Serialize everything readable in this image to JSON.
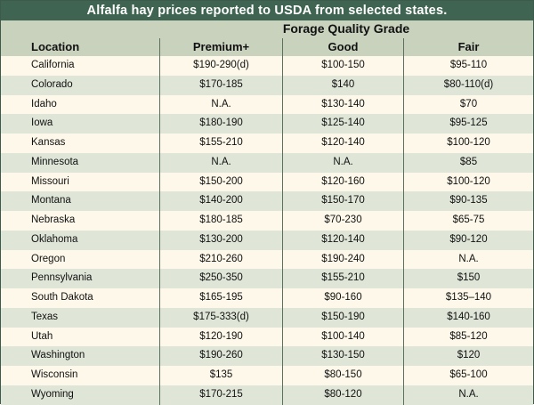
{
  "title": "Alfalfa hay prices reported to USDA from selected states.",
  "group_header": "Forage Quality Grade",
  "columns": {
    "location": "Location",
    "premium": "Premium+",
    "good": "Good",
    "fair": "Fair"
  },
  "rows": [
    {
      "location": "California",
      "premium": "$190-290(d)",
      "good": "$100-150",
      "fair": "$95-110"
    },
    {
      "location": "Colorado",
      "premium": "$170-185",
      "good": "$140",
      "fair": "$80-110(d)"
    },
    {
      "location": "Idaho",
      "premium": "N.A.",
      "good": "$130-140",
      "fair": "$70"
    },
    {
      "location": "Iowa",
      "premium": "$180-190",
      "good": "$125-140",
      "fair": "$95-125"
    },
    {
      "location": "Kansas",
      "premium": "$155-210",
      "good": "$120-140",
      "fair": "$100-120"
    },
    {
      "location": "Minnesota",
      "premium": "N.A.",
      "good": "N.A.",
      "fair": "$85"
    },
    {
      "location": "Missouri",
      "premium": "$150-200",
      "good": "$120-160",
      "fair": "$100-120"
    },
    {
      "location": "Montana",
      "premium": "$140-200",
      "good": "$150-170",
      "fair": "$90-135"
    },
    {
      "location": "Nebraska",
      "premium": "$180-185",
      "good": "$70-230",
      "fair": "$65-75"
    },
    {
      "location": "Oklahoma",
      "premium": "$130-200",
      "good": "$120-140",
      "fair": "$90-120"
    },
    {
      "location": "Oregon",
      "premium": "$210-260",
      "good": "$190-240",
      "fair": "N.A."
    },
    {
      "location": "Pennsylvania",
      "premium": "$250-350",
      "good": "$155-210",
      "fair": "$150"
    },
    {
      "location": "South Dakota",
      "premium": "$165-195",
      "good": "$90-160",
      "fair": "$135–140"
    },
    {
      "location": "Texas",
      "premium": "$175-333(d)",
      "good": "$150-190",
      "fair": "$140-160"
    },
    {
      "location": "Utah",
      "premium": "$120-190",
      "good": "$100-140",
      "fair": "$85-120"
    },
    {
      "location": "Washington",
      "premium": "$190-260",
      "good": "$130-150",
      "fair": "$120"
    },
    {
      "location": "Wisconsin",
      "premium": "$135",
      "good": "$80-150",
      "fair": "$65-100"
    },
    {
      "location": "Wyoming",
      "premium": "$170-215",
      "good": "$80-120",
      "fair": "N.A."
    }
  ]
}
